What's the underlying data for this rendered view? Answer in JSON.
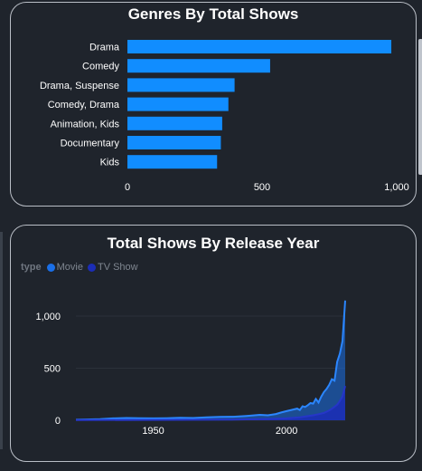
{
  "chart_data": [
    {
      "type": "bar",
      "orientation": "horizontal",
      "title": "Genres By Total Shows",
      "categories": [
        "Drama",
        "Comedy",
        "Drama, Suspense",
        "Comedy, Drama",
        "Animation, Kids",
        "Documentary",
        "Kids"
      ],
      "values": [
        980,
        530,
        398,
        375,
        352,
        347,
        333
      ],
      "xlim": [
        0,
        1000
      ],
      "xticks": [
        "0",
        "500",
        "1,000"
      ],
      "color": "#118dff",
      "grid": false
    },
    {
      "type": "area",
      "title": "Total Shows By Release Year",
      "legend": {
        "title": "type",
        "placement": "top-left"
      },
      "xlim": [
        1921,
        2022
      ],
      "ylim": [
        0,
        1200
      ],
      "xticks": [
        "1950",
        "2000"
      ],
      "yticks": [
        "0",
        "500",
        "1,000"
      ],
      "series": [
        {
          "name": "Movie",
          "color": "#1a6fe8",
          "points": [
            [
              1921,
              5
            ],
            [
              1925,
              8
            ],
            [
              1930,
              10
            ],
            [
              1935,
              18
            ],
            [
              1940,
              22
            ],
            [
              1945,
              20
            ],
            [
              1950,
              18
            ],
            [
              1955,
              20
            ],
            [
              1960,
              24
            ],
            [
              1965,
              22
            ],
            [
              1970,
              28
            ],
            [
              1975,
              32
            ],
            [
              1980,
              34
            ],
            [
              1985,
              42
            ],
            [
              1990,
              52
            ],
            [
              1993,
              48
            ],
            [
              1996,
              60
            ],
            [
              1998,
              75
            ],
            [
              2000,
              88
            ],
            [
              2002,
              100
            ],
            [
              2004,
              112
            ],
            [
              2005,
              98
            ],
            [
              2006,
              135
            ],
            [
              2007,
              128
            ],
            [
              2008,
              145
            ],
            [
              2009,
              165
            ],
            [
              2010,
              160
            ],
            [
              2011,
              205
            ],
            [
              2012,
              170
            ],
            [
              2013,
              225
            ],
            [
              2014,
              270
            ],
            [
              2015,
              300
            ],
            [
              2016,
              340
            ],
            [
              2017,
              395
            ],
            [
              2018,
              380
            ],
            [
              2019,
              560
            ],
            [
              2020,
              640
            ],
            [
              2021,
              760
            ],
            [
              2022,
              1150
            ]
          ]
        },
        {
          "name": "TV Show",
          "color": "#1b2db6",
          "points": [
            [
              1921,
              2
            ],
            [
              1960,
              4
            ],
            [
              1980,
              6
            ],
            [
              1990,
              10
            ],
            [
              1995,
              14
            ],
            [
              2000,
              18
            ],
            [
              2005,
              28
            ],
            [
              2008,
              40
            ],
            [
              2010,
              48
            ],
            [
              2012,
              58
            ],
            [
              2014,
              70
            ],
            [
              2016,
              95
            ],
            [
              2017,
              110
            ],
            [
              2018,
              130
            ],
            [
              2019,
              150
            ],
            [
              2020,
              185
            ],
            [
              2021,
              230
            ],
            [
              2022,
              330
            ]
          ]
        }
      ]
    }
  ]
}
